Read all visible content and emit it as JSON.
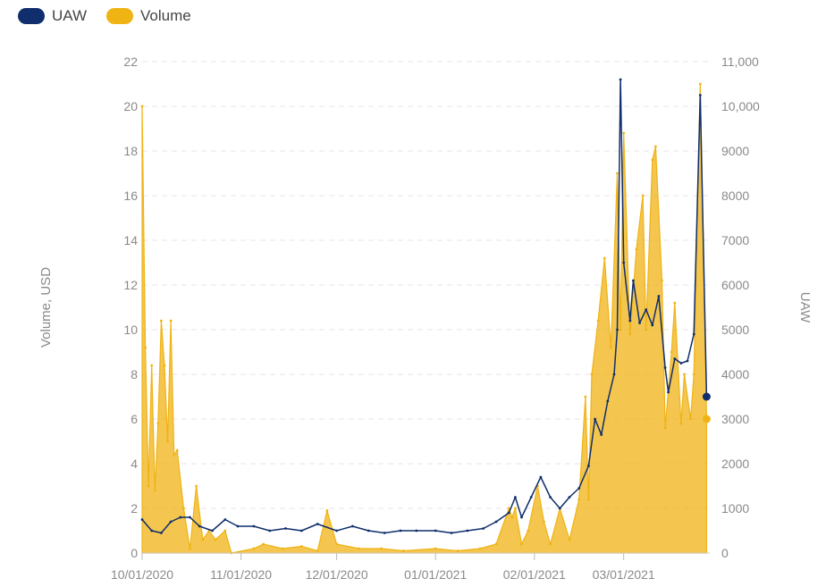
{
  "legend": {
    "uaw_label": "UAW",
    "volume_label": "Volume",
    "uaw_color": "#0f2e6b",
    "volume_color": "#f0b314"
  },
  "chart_data": {
    "type": "line",
    "title": "",
    "x_tick_labels": [
      "10/01/2020",
      "11/01/2020",
      "12/01/2020",
      "01/01/2021",
      "02/01/2021",
      "03/01/2021"
    ],
    "x_start": "2020-10-01",
    "x_end": "2021-03-28",
    "left_axis": {
      "label": "Volume, USD",
      "ticks": [
        "0",
        "2",
        "4",
        "6",
        "8",
        "10",
        "12",
        "14",
        "16",
        "18",
        "20",
        "22"
      ],
      "min": 0,
      "max": 22
    },
    "right_axis": {
      "label": "UAW",
      "ticks": [
        "0",
        "1000",
        "2000",
        "3000",
        "4000",
        "5000",
        "6000",
        "7000",
        "8000",
        "9000",
        "10,000",
        "11,000"
      ],
      "min": 0,
      "max": 11000
    },
    "grid": "horizontal dashed",
    "legend_position": "top-left",
    "series": [
      {
        "name": "UAW",
        "axis": "left",
        "type": "line",
        "color": "#0f2e6b",
        "points": [
          [
            "2020-10-01",
            1.5
          ],
          [
            "2020-10-04",
            1.0
          ],
          [
            "2020-10-07",
            0.9
          ],
          [
            "2020-10-10",
            1.4
          ],
          [
            "2020-10-13",
            1.6
          ],
          [
            "2020-10-16",
            1.6
          ],
          [
            "2020-10-19",
            1.2
          ],
          [
            "2020-10-23",
            1.0
          ],
          [
            "2020-10-27",
            1.5
          ],
          [
            "2020-10-31",
            1.2
          ],
          [
            "2020-11-05",
            1.2
          ],
          [
            "2020-11-10",
            1.0
          ],
          [
            "2020-11-15",
            1.1
          ],
          [
            "2020-11-20",
            1.0
          ],
          [
            "2020-11-25",
            1.3
          ],
          [
            "2020-12-01",
            1.0
          ],
          [
            "2020-12-06",
            1.2
          ],
          [
            "2020-12-11",
            1.0
          ],
          [
            "2020-12-16",
            0.9
          ],
          [
            "2020-12-21",
            1.0
          ],
          [
            "2020-12-26",
            1.0
          ],
          [
            "2021-01-01",
            1.0
          ],
          [
            "2021-01-06",
            0.9
          ],
          [
            "2021-01-11",
            1.0
          ],
          [
            "2021-01-16",
            1.1
          ],
          [
            "2021-01-20",
            1.4
          ],
          [
            "2021-01-24",
            1.8
          ],
          [
            "2021-01-26",
            2.5
          ],
          [
            "2021-01-28",
            1.6
          ],
          [
            "2021-01-31",
            2.5
          ],
          [
            "2021-02-03",
            3.4
          ],
          [
            "2021-02-06",
            2.5
          ],
          [
            "2021-02-09",
            2.0
          ],
          [
            "2021-02-12",
            2.5
          ],
          [
            "2021-02-15",
            2.9
          ],
          [
            "2021-02-18",
            3.9
          ],
          [
            "2021-02-20",
            6.0
          ],
          [
            "2021-02-22",
            5.3
          ],
          [
            "2021-02-24",
            6.8
          ],
          [
            "2021-02-26",
            8.0
          ],
          [
            "2021-02-27",
            10.0
          ],
          [
            "2021-02-28",
            21.2
          ],
          [
            "2021-03-01",
            13.0
          ],
          [
            "2021-03-03",
            10.4
          ],
          [
            "2021-03-04",
            12.2
          ],
          [
            "2021-03-06",
            10.3
          ],
          [
            "2021-03-08",
            10.9
          ],
          [
            "2021-03-10",
            10.2
          ],
          [
            "2021-03-12",
            11.5
          ],
          [
            "2021-03-14",
            8.3
          ],
          [
            "2021-03-15",
            7.2
          ],
          [
            "2021-03-17",
            8.7
          ],
          [
            "2021-03-19",
            8.5
          ],
          [
            "2021-03-21",
            8.6
          ],
          [
            "2021-03-23",
            9.8
          ],
          [
            "2021-03-25",
            20.5
          ],
          [
            "2021-03-27",
            7.0
          ]
        ]
      },
      {
        "name": "Volume",
        "axis": "right",
        "type": "area",
        "color": "#f0b314",
        "points": [
          [
            "2020-10-01",
            10000
          ],
          [
            "2020-10-02",
            4600
          ],
          [
            "2020-10-03",
            1500
          ],
          [
            "2020-10-04",
            4200
          ],
          [
            "2020-10-05",
            1400
          ],
          [
            "2020-10-06",
            2900
          ],
          [
            "2020-10-07",
            5200
          ],
          [
            "2020-10-08",
            4200
          ],
          [
            "2020-10-09",
            2500
          ],
          [
            "2020-10-10",
            5200
          ],
          [
            "2020-10-11",
            2200
          ],
          [
            "2020-10-12",
            2300
          ],
          [
            "2020-10-14",
            1000
          ],
          [
            "2020-10-16",
            100
          ],
          [
            "2020-10-18",
            1500
          ],
          [
            "2020-10-20",
            300
          ],
          [
            "2020-10-22",
            500
          ],
          [
            "2020-10-24",
            300
          ],
          [
            "2020-10-27",
            500
          ],
          [
            "2020-10-29",
            0
          ],
          [
            "2020-11-05",
            100
          ],
          [
            "2020-11-08",
            200
          ],
          [
            "2020-11-14",
            100
          ],
          [
            "2020-11-20",
            150
          ],
          [
            "2020-11-25",
            50
          ],
          [
            "2020-11-28",
            950
          ],
          [
            "2020-12-01",
            200
          ],
          [
            "2020-12-08",
            100
          ],
          [
            "2020-12-15",
            100
          ],
          [
            "2020-12-22",
            50
          ],
          [
            "2021-01-01",
            100
          ],
          [
            "2021-01-08",
            50
          ],
          [
            "2021-01-15",
            100
          ],
          [
            "2021-01-20",
            200
          ],
          [
            "2021-01-24",
            1000
          ],
          [
            "2021-01-25",
            800
          ],
          [
            "2021-01-26",
            1000
          ],
          [
            "2021-01-28",
            200
          ],
          [
            "2021-01-30",
            500
          ],
          [
            "2021-02-02",
            1500
          ],
          [
            "2021-02-04",
            700
          ],
          [
            "2021-02-06",
            200
          ],
          [
            "2021-02-09",
            1000
          ],
          [
            "2021-02-12",
            300
          ],
          [
            "2021-02-15",
            1200
          ],
          [
            "2021-02-17",
            3500
          ],
          [
            "2021-02-18",
            1200
          ],
          [
            "2021-02-19",
            4000
          ],
          [
            "2021-02-21",
            5200
          ],
          [
            "2021-02-23",
            6600
          ],
          [
            "2021-02-25",
            4600
          ],
          [
            "2021-02-27",
            8500
          ],
          [
            "2021-02-28",
            5000
          ],
          [
            "2021-03-01",
            9400
          ],
          [
            "2021-03-03",
            4900
          ],
          [
            "2021-03-05",
            6800
          ],
          [
            "2021-03-07",
            8000
          ],
          [
            "2021-03-08",
            5000
          ],
          [
            "2021-03-10",
            8800
          ],
          [
            "2021-03-11",
            9100
          ],
          [
            "2021-03-13",
            6100
          ],
          [
            "2021-03-14",
            2800
          ],
          [
            "2021-03-16",
            4500
          ],
          [
            "2021-03-17",
            5600
          ],
          [
            "2021-03-19",
            2900
          ],
          [
            "2021-03-20",
            4000
          ],
          [
            "2021-03-22",
            3000
          ],
          [
            "2021-03-23",
            4000
          ],
          [
            "2021-03-25",
            10500
          ],
          [
            "2021-03-27",
            3000
          ]
        ]
      }
    ]
  }
}
